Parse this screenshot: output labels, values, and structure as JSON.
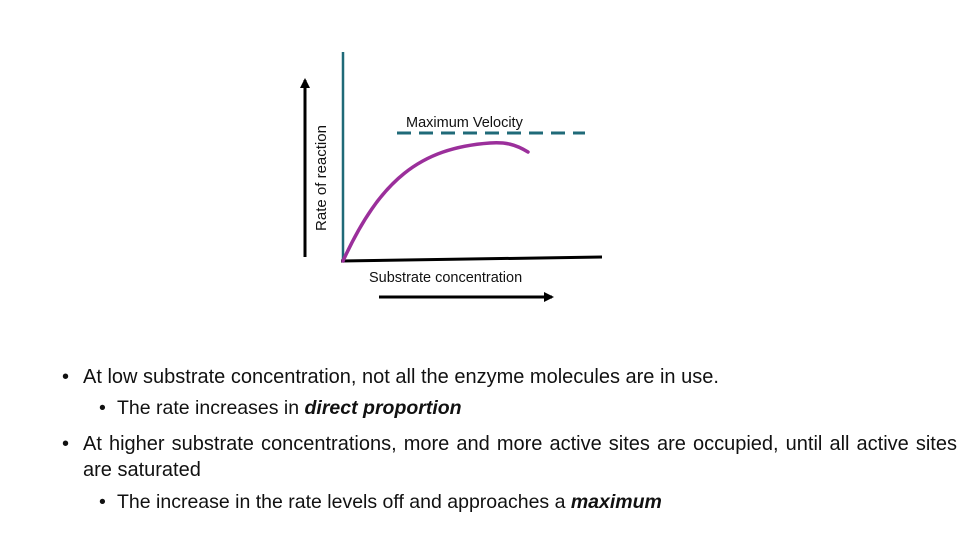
{
  "diagram": {
    "y_axis_label": "Rate of reaction",
    "x_axis_label": "Substrate concentration",
    "max_velocity_label": "Maximum Velocity",
    "colors": {
      "axis_lines": "#1f6a78",
      "axis_base": "#000000",
      "curve": "#9b2f9b",
      "max_velocity_line": "#1f6a78",
      "arrows": "#000000"
    }
  },
  "bullets": [
    {
      "text": "At low substrate concentration, not all the enzyme molecules are in use.",
      "sub": {
        "prefix": "The rate increases in ",
        "emphasis": "direct proportion"
      }
    },
    {
      "text": "At higher substrate concentrations, more and more active sites are occupied, until all active sites are saturated",
      "sub": {
        "prefix": "The increase in the rate levels off and approaches a ",
        "emphasis": "maximum"
      }
    }
  ]
}
